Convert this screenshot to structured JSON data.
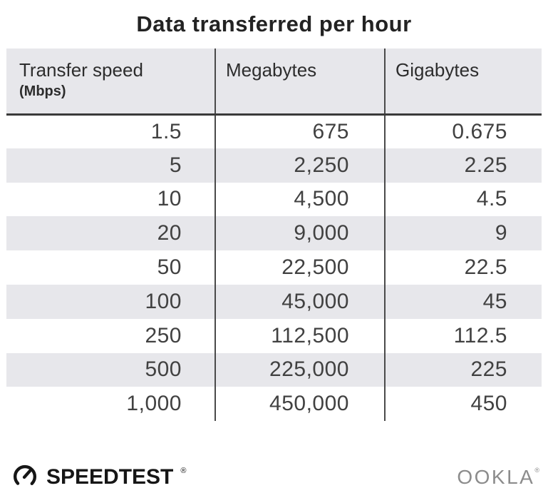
{
  "title": "Data transferred per hour",
  "table": {
    "columns": [
      {
        "label": "Transfer speed",
        "sublabel": "(Mbps)"
      },
      {
        "label": "Megabytes",
        "sublabel": ""
      },
      {
        "label": "Gigabytes",
        "sublabel": ""
      }
    ],
    "rows": [
      [
        "1.5",
        "675",
        "0.675"
      ],
      [
        "5",
        "2,250",
        "2.25"
      ],
      [
        "10",
        "4,500",
        "4.5"
      ],
      [
        "20",
        "9,000",
        "9"
      ],
      [
        "50",
        "22,500",
        "22.5"
      ],
      [
        "100",
        "45,000",
        "45"
      ],
      [
        "250",
        "112,500",
        "112.5"
      ],
      [
        "500",
        "225,000",
        "225"
      ],
      [
        "1,000",
        "450,000",
        "450"
      ]
    ]
  },
  "chart_data": {
    "type": "table",
    "title": "Data transferred per hour",
    "columns": [
      "Transfer speed (Mbps)",
      "Megabytes",
      "Gigabytes"
    ],
    "rows": [
      [
        1.5,
        675,
        0.675
      ],
      [
        5,
        2250,
        2.25
      ],
      [
        10,
        4500,
        4.5
      ],
      [
        20,
        9000,
        9
      ],
      [
        50,
        22500,
        22.5
      ],
      [
        100,
        45000,
        45
      ],
      [
        250,
        112500,
        112.5
      ],
      [
        500,
        225000,
        225
      ],
      [
        1000,
        450000,
        450
      ]
    ]
  },
  "footer": {
    "speedtest_label": "SPEEDTEST",
    "speedtest_registered": "®",
    "ookla_label": "OOKLA",
    "ookla_registered": "®"
  },
  "colors": {
    "stripe_gray": "#e7e7eb",
    "header_rule": "#3a3a3a",
    "column_divider": "#4a4a4a",
    "title_text": "#232323",
    "header_text": "#2d2d2d",
    "number_text": "#414141",
    "speedtest_black": "#161616",
    "ookla_gray": "#8c8c8c"
  }
}
